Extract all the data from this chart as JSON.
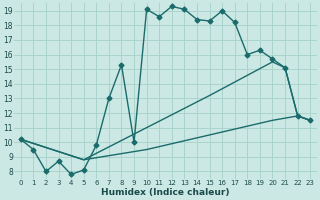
{
  "xlabel": "Humidex (Indice chaleur)",
  "background_color": "#cce8e4",
  "grid_color": "#aad4cc",
  "line_color": "#1a6b6b",
  "xlim": [
    -0.5,
    23.5
  ],
  "ylim": [
    7.5,
    19.5
  ],
  "xticks": [
    0,
    1,
    2,
    3,
    4,
    5,
    6,
    7,
    8,
    9,
    10,
    11,
    12,
    13,
    14,
    15,
    16,
    17,
    18,
    19,
    20,
    21,
    22,
    23
  ],
  "yticks": [
    8,
    9,
    10,
    11,
    12,
    13,
    14,
    15,
    16,
    17,
    18,
    19
  ],
  "series": [
    {
      "x": [
        0,
        1,
        2,
        3,
        4,
        5,
        6,
        7,
        8,
        9,
        10,
        11,
        12,
        13,
        14,
        15,
        16,
        17,
        18,
        19,
        20,
        21,
        22,
        23
      ],
      "y": [
        10.2,
        9.5,
        8.0,
        8.7,
        7.8,
        8.1,
        9.8,
        13.0,
        15.3,
        10.0,
        19.1,
        18.6,
        19.3,
        19.1,
        18.4,
        18.3,
        19.0,
        18.2,
        16.0,
        16.3,
        15.7,
        15.1,
        11.8,
        11.5
      ],
      "marker": "D",
      "markersize": 2.5,
      "linewidth": 1.0
    },
    {
      "x": [
        0,
        5,
        10,
        15,
        20,
        22,
        23
      ],
      "y": [
        10.2,
        8.8,
        9.5,
        10.5,
        11.5,
        11.8,
        11.5
      ],
      "marker": null,
      "markersize": 0,
      "linewidth": 1.0
    },
    {
      "x": [
        0,
        5,
        10,
        15,
        20,
        21,
        22,
        23
      ],
      "y": [
        10.2,
        8.8,
        11.0,
        13.2,
        15.5,
        15.1,
        11.8,
        11.5
      ],
      "marker": null,
      "markersize": 0,
      "linewidth": 1.0
    }
  ]
}
